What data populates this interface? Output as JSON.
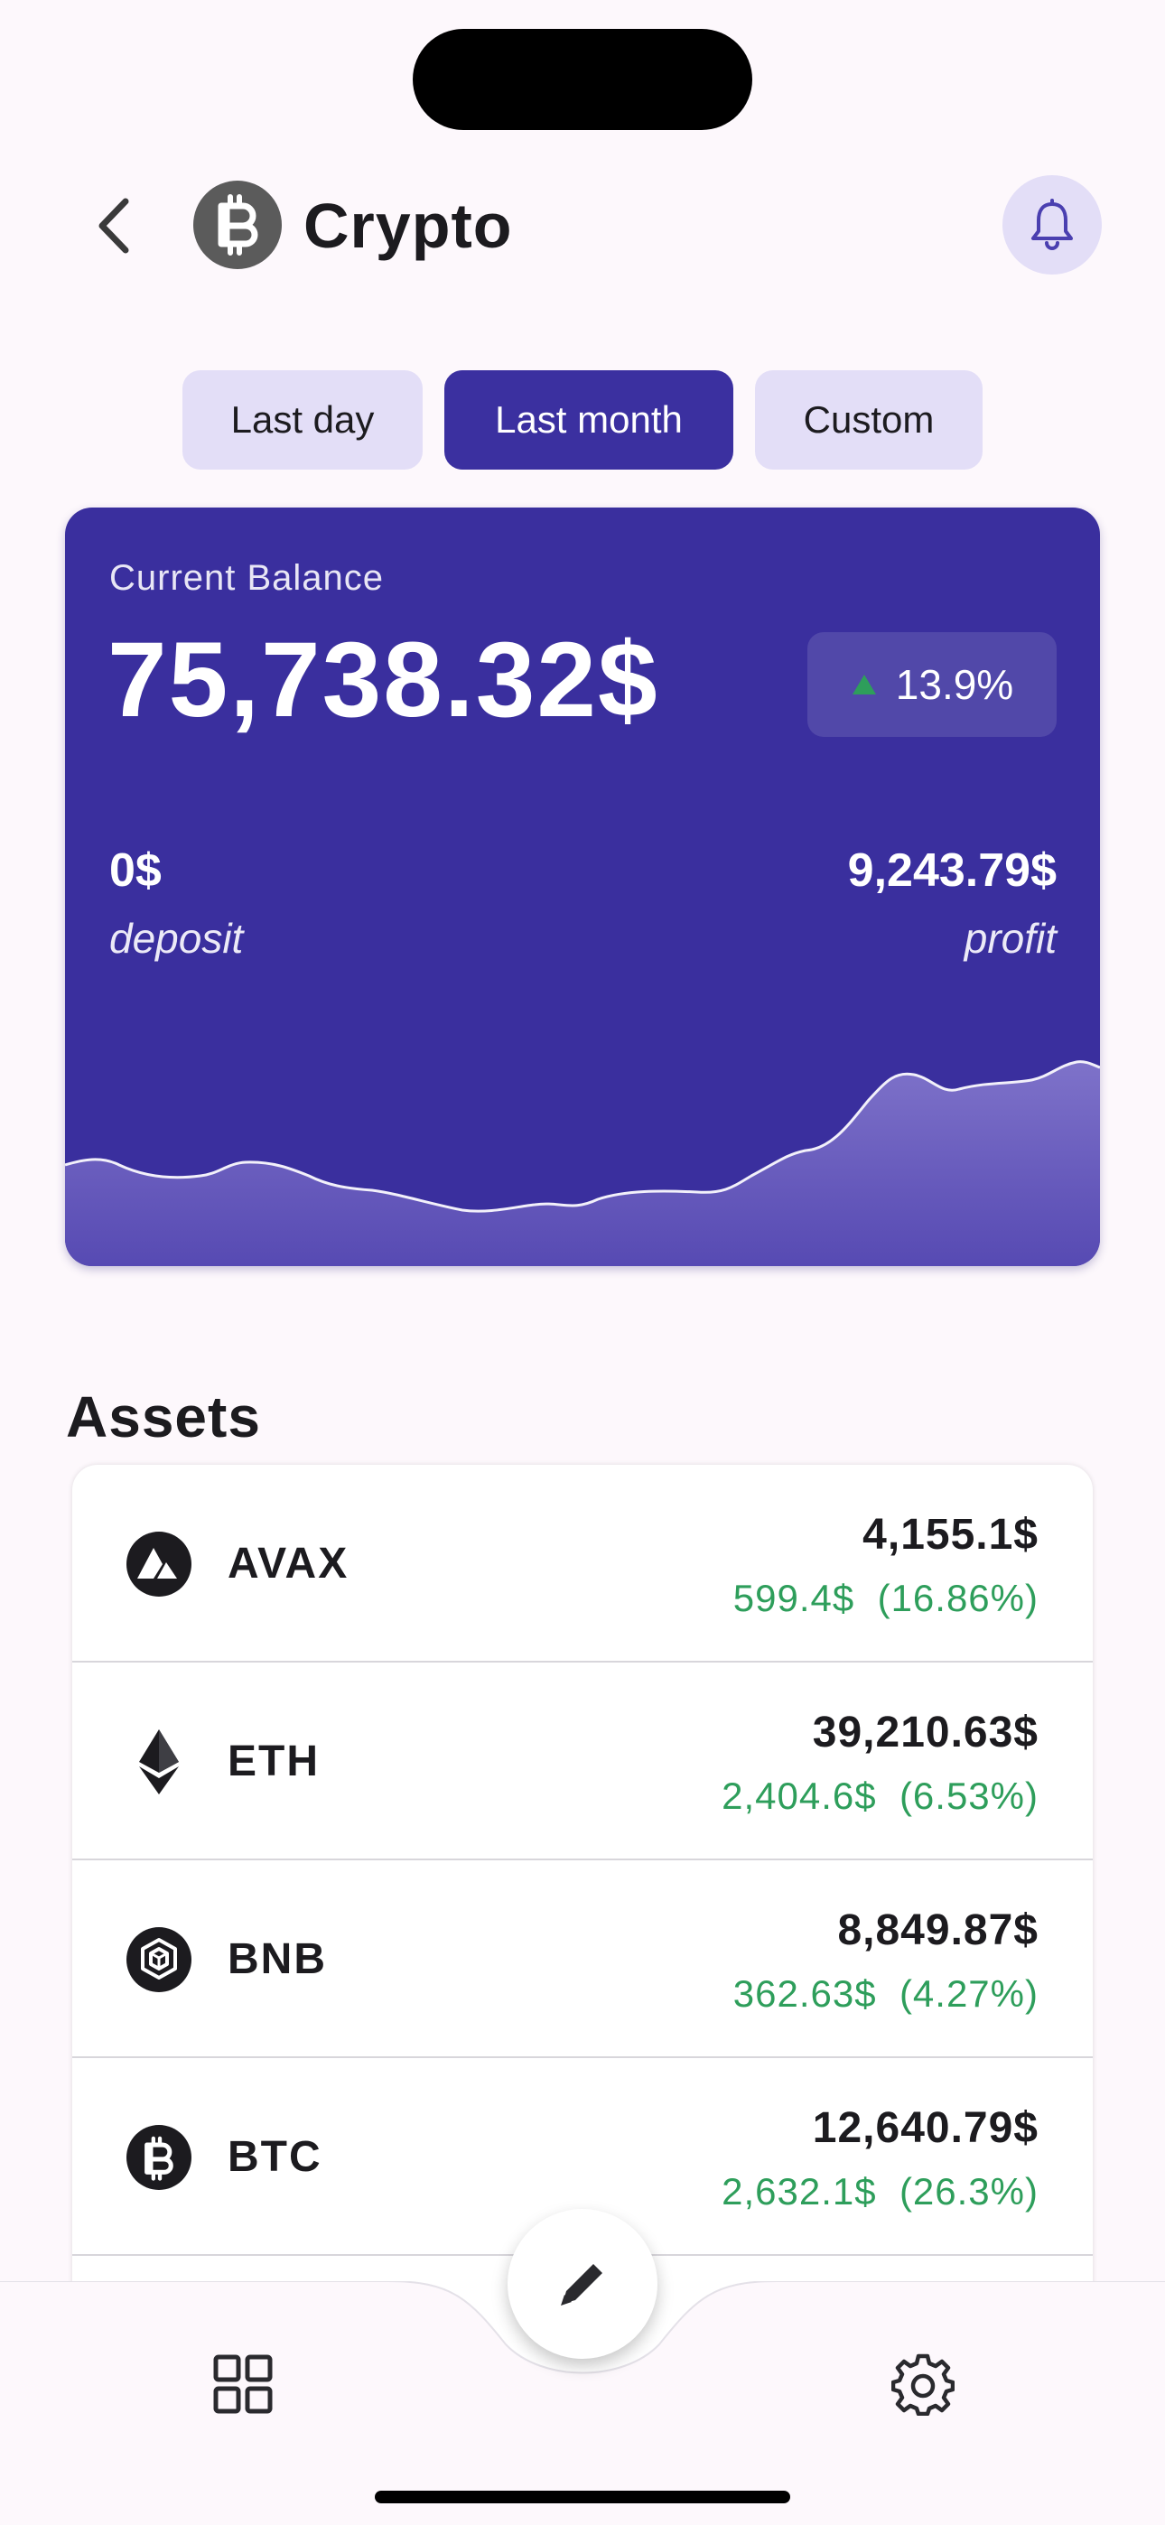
{
  "header": {
    "title": "Crypto",
    "back_icon": "chevron-left-icon",
    "logo_icon": "bitcoin-icon",
    "notification_icon": "bell-icon"
  },
  "filters": [
    {
      "label": "Last day",
      "active": false
    },
    {
      "label": "Last month",
      "active": true
    },
    {
      "label": "Custom",
      "active": false
    }
  ],
  "balance_card": {
    "label": "Current Balance",
    "balance": "75,738.32$",
    "change": "13.9%",
    "change_direction": "up",
    "deposit_value": "0$",
    "deposit_label": "deposit",
    "profit_value": "9,243.79$",
    "profit_label": "profit",
    "colors": {
      "card": "#3A2F9E",
      "chart_fill": "#7A6CC4",
      "up": "#2E9E5B"
    }
  },
  "assets": {
    "title": "Assets",
    "items": [
      {
        "symbol": "AVAX",
        "value": "4,155.1$",
        "gain": "599.4$",
        "gain_pct": "(16.86%)",
        "icon": "avalanche-icon"
      },
      {
        "symbol": "ETH",
        "value": "39,210.63$",
        "gain": "2,404.6$",
        "gain_pct": "(6.53%)",
        "icon": "ethereum-icon"
      },
      {
        "symbol": "BNB",
        "value": "8,849.87$",
        "gain": "362.63$",
        "gain_pct": "(4.27%)",
        "icon": "binance-icon"
      },
      {
        "symbol": "BTC",
        "value": "12,640.79$",
        "gain": "2,632.1$",
        "gain_pct": "(26.3%)",
        "icon": "bitcoin-icon"
      }
    ]
  },
  "bottom_nav": {
    "left_icon": "grid-icon",
    "center_icon": "pencil-icon",
    "right_icon": "gear-icon"
  }
}
